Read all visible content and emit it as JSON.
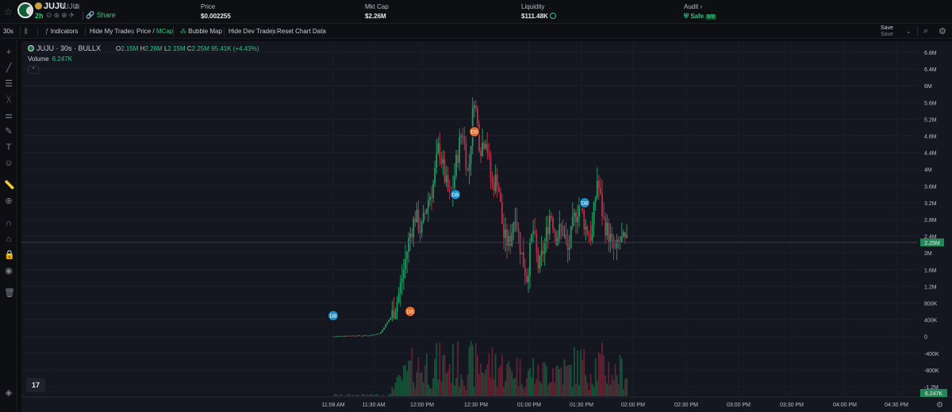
{
  "header": {
    "token_name": "JUJU",
    "token_symbol": "JUJU",
    "age": "2h",
    "share_label": "Share",
    "stats": [
      {
        "label": "Price",
        "value": "$0.002255"
      },
      {
        "label": "Mkt Cap",
        "value": "$2.26M"
      },
      {
        "label": "Liquidity",
        "value": "$111.48K"
      },
      {
        "label": "Audit",
        "value": "Safe",
        "badge": "8/8"
      }
    ]
  },
  "toolbar": {
    "interval": "30s",
    "indicators": "Indicators",
    "hide_my_trades": "Hide My Trades",
    "price_label": "Price",
    "mcap_label": "MCap",
    "bubble_map": "Bubble Map",
    "hide_dev_trades": "Hide Dev Trades",
    "reset_chart": "Reset Chart Data",
    "save": "Save",
    "save_sub": "Save"
  },
  "legend": {
    "title": "JUJU · 30s · BULLX",
    "open": "2.15M",
    "high": "2.26M",
    "low": "2.15M",
    "close": "2.25M",
    "change": "95.41K (+4.43%)",
    "volume_label": "Volume",
    "volume_value": "6.247K"
  },
  "tv_logo": "17",
  "chart_data": {
    "type": "candlestick",
    "y_ticks": [
      "6.8M",
      "6.4M",
      "6M",
      "5.6M",
      "5.2M",
      "4.8M",
      "4.4M",
      "4M",
      "3.6M",
      "3.2M",
      "2.8M",
      "2.4M",
      "2M",
      "1.6M",
      "1.2M",
      "800K",
      "400K",
      "0",
      "-400K",
      "-800K",
      "-1.2M"
    ],
    "y_range": [
      -1.2,
      6.8
    ],
    "x_ticks": [
      "11:08 AM",
      "11:30 AM",
      "12:00 PM",
      "12:30 PM",
      "01:00 PM",
      "01:30 PM",
      "02:00 PM",
      "02:30 PM",
      "03:00 PM",
      "03:30 PM",
      "04:00 PM",
      "04:30 PM"
    ],
    "last_price_label": "2.25M",
    "last_price": 2.25,
    "last_volume_label": "6.247K",
    "markers": [
      {
        "label": "DB",
        "time": "11:08 AM",
        "value": 0.5,
        "color": "#1e8cc9"
      },
      {
        "label": "DS",
        "time": "11:49 AM",
        "value": 0.6,
        "color": "#e06a2a"
      },
      {
        "label": "DB",
        "time": "12:19 PM",
        "value": 3.4,
        "color": "#1e8cc9"
      },
      {
        "label": "DS",
        "time": "12:30 PM",
        "value": 4.9,
        "color": "#e06a2a"
      },
      {
        "label": "DB",
        "time": "01:37 PM",
        "value": 3.2,
        "color": "#1e8cc9"
      }
    ],
    "price_path": [
      [
        0,
        0.0
      ],
      [
        0.15,
        0.02
      ],
      [
        0.3,
        0.02
      ],
      [
        0.4,
        0.08
      ],
      [
        0.45,
        0.3
      ],
      [
        0.5,
        0.5
      ],
      [
        0.55,
        0.9
      ],
      [
        0.6,
        1.6
      ],
      [
        0.65,
        2.4
      ],
      [
        0.7,
        2.9
      ],
      [
        0.75,
        2.5
      ],
      [
        0.8,
        3.2
      ],
      [
        0.85,
        3.6
      ],
      [
        0.9,
        4.6
      ],
      [
        0.95,
        3.8
      ],
      [
        1.0,
        3.2
      ],
      [
        1.05,
        4.2
      ],
      [
        1.1,
        5.0
      ],
      [
        1.15,
        3.8
      ],
      [
        1.2,
        5.8
      ],
      [
        1.25,
        4.5
      ],
      [
        1.3,
        4.8
      ],
      [
        1.35,
        3.6
      ],
      [
        1.4,
        3.8
      ],
      [
        1.45,
        2.4
      ],
      [
        1.5,
        2.2
      ],
      [
        1.55,
        3.0
      ],
      [
        1.6,
        2.0
      ],
      [
        1.65,
        1.4
      ],
      [
        1.7,
        2.6
      ],
      [
        1.75,
        1.6
      ],
      [
        1.8,
        2.2
      ],
      [
        1.85,
        3.0
      ],
      [
        1.9,
        2.4
      ],
      [
        1.95,
        2.6
      ],
      [
        2.0,
        2.0
      ],
      [
        2.05,
        2.8
      ],
      [
        2.1,
        3.2
      ],
      [
        2.15,
        2.6
      ],
      [
        2.2,
        2.4
      ],
      [
        2.25,
        3.8
      ],
      [
        2.3,
        2.8
      ],
      [
        2.35,
        2.4
      ],
      [
        2.4,
        2.0
      ],
      [
        2.45,
        2.3
      ],
      [
        2.5,
        2.2
      ]
    ]
  }
}
